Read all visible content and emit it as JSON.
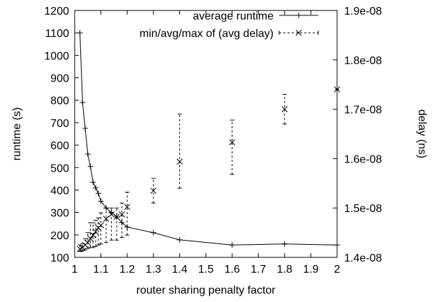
{
  "chart_data": {
    "type": "line",
    "title": "",
    "xlabel": "router sharing penalty factor",
    "ylabel": "runtime (s)",
    "y2label": "delay (ns)",
    "xlim": [
      1,
      2
    ],
    "ylim": [
      100,
      1200
    ],
    "y2lim": [
      1.4e-08,
      1.9e-08
    ],
    "x_ticks": [
      "1",
      "1.1",
      "1.2",
      "1.3",
      "1.4",
      "1.5",
      "1.6",
      "1.7",
      "1.8",
      "1.9",
      "2"
    ],
    "y_ticks": [
      "100",
      "200",
      "300",
      "400",
      "500",
      "600",
      "700",
      "800",
      "900",
      "1000",
      "1100",
      "1200"
    ],
    "y2_ticks": [
      "1.4e-08",
      "1.5e-08",
      "1.6e-08",
      "1.7e-08",
      "1.8e-08",
      "1.9e-08"
    ],
    "grid": false,
    "legend_position": "top-right",
    "series": [
      {
        "name": "average runtime",
        "axis": "left",
        "style": "solid line with + markers",
        "x": [
          1.02,
          1.03,
          1.04,
          1.05,
          1.06,
          1.07,
          1.08,
          1.09,
          1.1,
          1.12,
          1.14,
          1.16,
          1.18,
          1.2,
          1.3,
          1.4,
          1.6,
          1.8,
          2.0
        ],
        "y": [
          1100,
          790,
          675,
          560,
          505,
          435,
          410,
          385,
          350,
          320,
          300,
          280,
          255,
          235,
          210,
          178,
          155,
          160,
          155
        ]
      },
      {
        "name": "min/avg/max of (avg delay)",
        "axis": "right",
        "style": "x markers with dashed min/max error bars",
        "x": [
          1.02,
          1.03,
          1.04,
          1.05,
          1.06,
          1.07,
          1.08,
          1.09,
          1.1,
          1.12,
          1.14,
          1.16,
          1.18,
          1.2,
          1.3,
          1.4,
          1.6,
          1.8,
          2.0
        ],
        "avg": [
          1.417e-08,
          1.42e-08,
          1.425e-08,
          1.43e-08,
          1.438e-08,
          1.445e-08,
          1.452e-08,
          1.46e-08,
          1.465e-08,
          1.478e-08,
          1.487e-08,
          1.482e-08,
          1.487e-08,
          1.502e-08,
          1.535e-08,
          1.594e-08,
          1.633e-08,
          1.7e-08,
          1.74e-08
        ],
        "min": [
          1.412e-08,
          1.413e-08,
          1.415e-08,
          1.418e-08,
          1.42e-08,
          1.42e-08,
          1.422e-08,
          1.425e-08,
          1.427e-08,
          1.43e-08,
          1.435e-08,
          1.435e-08,
          1.44e-08,
          1.445e-08,
          1.51e-08,
          1.54e-08,
          1.568e-08,
          1.67e-08,
          1.74e-08
        ],
        "max": [
          1.425e-08,
          1.428e-08,
          1.438e-08,
          1.45e-08,
          1.47e-08,
          1.47e-08,
          1.475e-08,
          1.48e-08,
          1.49e-08,
          1.5e-08,
          1.5e-08,
          1.5e-08,
          1.51e-08,
          1.532e-08,
          1.56e-08,
          1.69e-08,
          1.678e-08,
          1.73e-08,
          1.74e-08
        ]
      }
    ]
  }
}
